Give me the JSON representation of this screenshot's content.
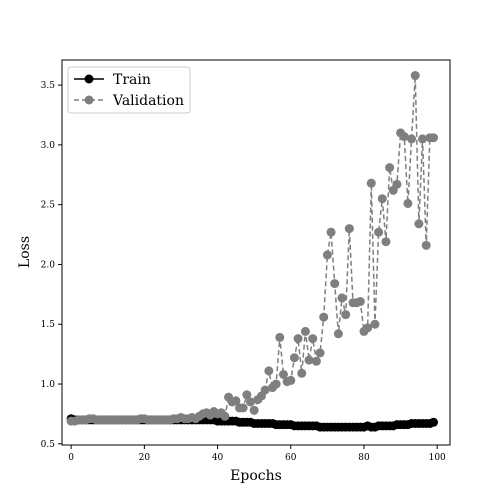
{
  "chart_data": {
    "type": "line",
    "xlabel": "Epochs",
    "ylabel": "Loss",
    "xlim": [
      -2.5,
      103.5
    ],
    "ylim": [
      0.49,
      3.71
    ],
    "x_ticks": [
      0,
      20,
      40,
      60,
      80,
      100
    ],
    "y_ticks": [
      0.5,
      1.0,
      1.5,
      2.0,
      2.5,
      3.0,
      3.5
    ],
    "x_tick_labels": [
      "0",
      "20",
      "40",
      "60",
      "80",
      "100"
    ],
    "y_tick_labels": [
      "0.5",
      "1.0",
      "1.5",
      "2.0",
      "2.5",
      "3.0",
      "3.5"
    ],
    "grid": false,
    "legend_position": "top-left",
    "x": [
      0,
      1,
      2,
      3,
      4,
      5,
      6,
      7,
      8,
      9,
      10,
      11,
      12,
      13,
      14,
      15,
      16,
      17,
      18,
      19,
      20,
      21,
      22,
      23,
      24,
      25,
      26,
      27,
      28,
      29,
      30,
      31,
      32,
      33,
      34,
      35,
      36,
      37,
      38,
      39,
      40,
      41,
      42,
      43,
      44,
      45,
      46,
      47,
      48,
      49,
      50,
      51,
      52,
      53,
      54,
      55,
      56,
      57,
      58,
      59,
      60,
      61,
      62,
      63,
      64,
      65,
      66,
      67,
      68,
      69,
      70,
      71,
      72,
      73,
      74,
      75,
      76,
      77,
      78,
      79,
      80,
      81,
      82,
      83,
      84,
      85,
      86,
      87,
      88,
      89,
      90,
      91,
      92,
      93,
      94,
      95,
      96,
      97,
      98,
      99
    ],
    "series": [
      {
        "name": "Train",
        "color": "#000000",
        "line_style": "solid",
        "values": [
          0.71,
          0.7,
          0.7,
          0.7,
          0.7,
          0.7,
          0.7,
          0.7,
          0.7,
          0.7,
          0.7,
          0.7,
          0.7,
          0.7,
          0.7,
          0.7,
          0.7,
          0.7,
          0.7,
          0.7,
          0.7,
          0.7,
          0.7,
          0.7,
          0.7,
          0.7,
          0.7,
          0.7,
          0.7,
          0.7,
          0.7,
          0.7,
          0.7,
          0.7,
          0.7,
          0.7,
          0.7,
          0.7,
          0.7,
          0.7,
          0.69,
          0.69,
          0.69,
          0.69,
          0.69,
          0.69,
          0.68,
          0.68,
          0.68,
          0.68,
          0.67,
          0.67,
          0.67,
          0.67,
          0.67,
          0.67,
          0.66,
          0.66,
          0.66,
          0.66,
          0.66,
          0.65,
          0.65,
          0.65,
          0.65,
          0.65,
          0.65,
          0.65,
          0.64,
          0.64,
          0.64,
          0.64,
          0.64,
          0.64,
          0.64,
          0.64,
          0.64,
          0.64,
          0.64,
          0.64,
          0.64,
          0.65,
          0.64,
          0.64,
          0.65,
          0.65,
          0.65,
          0.65,
          0.65,
          0.66,
          0.66,
          0.66,
          0.66,
          0.67,
          0.67,
          0.67,
          0.67,
          0.67,
          0.67,
          0.68
        ]
      },
      {
        "name": "Validation",
        "color": "#7f7f7f",
        "line_style": "dashed",
        "values": [
          0.69,
          0.69,
          0.7,
          0.7,
          0.7,
          0.71,
          0.71,
          0.7,
          0.7,
          0.7,
          0.7,
          0.7,
          0.7,
          0.7,
          0.7,
          0.7,
          0.7,
          0.7,
          0.7,
          0.71,
          0.71,
          0.7,
          0.7,
          0.7,
          0.7,
          0.7,
          0.7,
          0.7,
          0.71,
          0.71,
          0.72,
          0.71,
          0.71,
          0.72,
          0.71,
          0.73,
          0.75,
          0.76,
          0.74,
          0.77,
          0.75,
          0.76,
          0.73,
          0.89,
          0.85,
          0.86,
          0.8,
          0.8,
          0.91,
          0.85,
          0.78,
          0.87,
          0.9,
          0.95,
          1.11,
          0.97,
          1.0,
          1.39,
          1.08,
          1.02,
          1.03,
          1.22,
          1.38,
          1.09,
          1.44,
          1.2,
          1.38,
          1.19,
          1.26,
          1.56,
          2.08,
          2.27,
          1.84,
          1.42,
          1.72,
          1.58,
          2.3,
          1.68,
          1.68,
          1.69,
          1.44,
          1.47,
          2.68,
          1.5,
          2.27,
          2.55,
          2.19,
          2.81,
          2.62,
          2.67,
          3.1,
          3.07,
          2.51,
          3.05,
          3.58,
          2.34,
          3.05,
          2.16,
          3.06,
          3.06
        ]
      }
    ]
  }
}
